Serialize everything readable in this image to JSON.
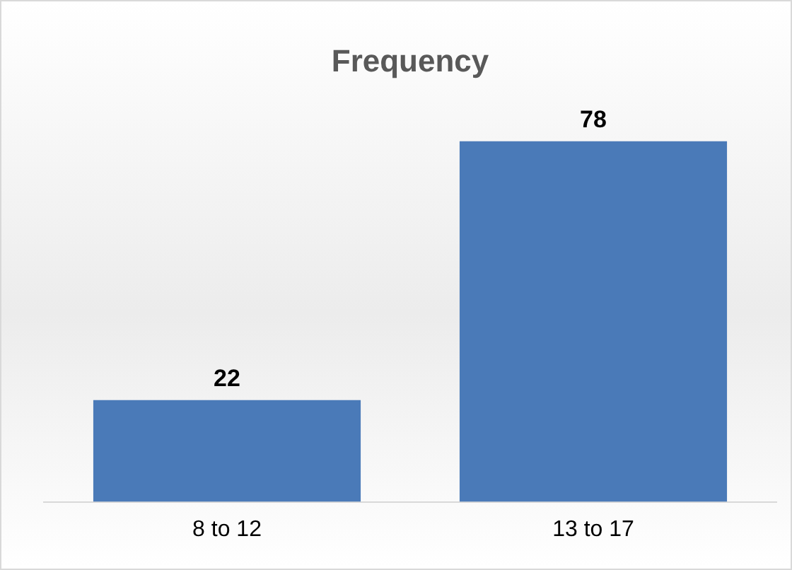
{
  "chart_data": {
    "type": "bar",
    "title": "Frequency",
    "categories": [
      "8 to 12",
      "13 to 17"
    ],
    "values": [
      22,
      78
    ],
    "color": "#4a7ab8",
    "data_labels": true,
    "grid": false,
    "legend": false
  }
}
